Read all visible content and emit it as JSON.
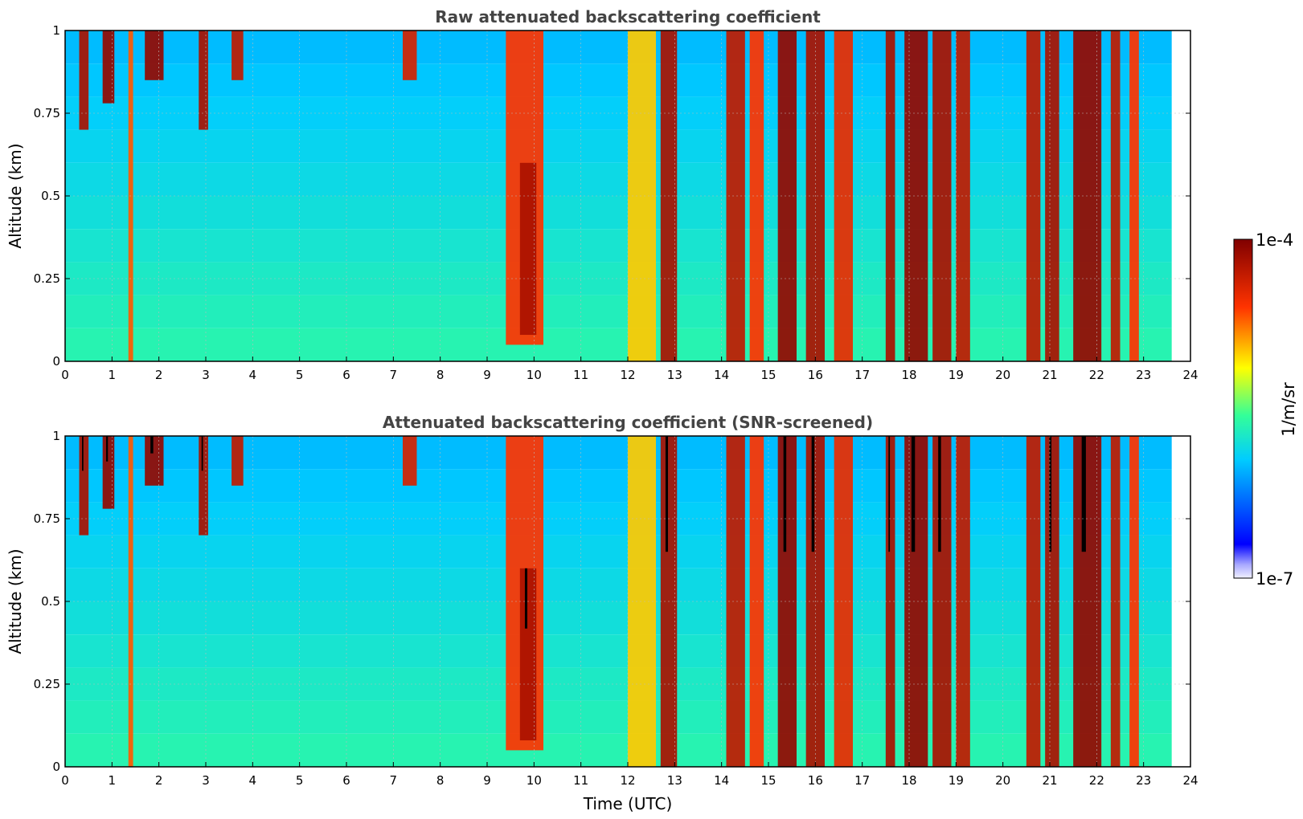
{
  "chart_data": [
    {
      "type": "heatmap",
      "title": "Raw attenuated backscattering coefficient",
      "xlabel": "",
      "ylabel": "Altitude (km)",
      "xlim": [
        0,
        24
      ],
      "ylim": [
        0,
        1
      ],
      "x_ticks": [
        "0",
        "1",
        "2",
        "3",
        "4",
        "5",
        "6",
        "7",
        "8",
        "9",
        "10",
        "11",
        "12",
        "13",
        "14",
        "15",
        "16",
        "17",
        "18",
        "19",
        "20",
        "21",
        "22",
        "23",
        "24"
      ],
      "y_ticks": [
        "0",
        "0.25",
        "0.5",
        "0.75",
        "1"
      ],
      "y_tick_values": [
        0,
        0.25,
        0.5,
        0.75,
        1
      ],
      "grid": true,
      "screened": false,
      "data_end_utc": 23.6,
      "background_log10": -5.9,
      "layers": [
        {
          "t_start": 0.3,
          "t_end": 0.5,
          "log10": -4.2,
          "alt_min": 0.7,
          "alt_max": 1.0
        },
        {
          "t_start": 0.8,
          "t_end": 1.05,
          "log10": -4.1,
          "alt_min": 0.78,
          "alt_max": 1.0
        },
        {
          "t_start": 1.35,
          "t_end": 1.45,
          "log10": -4.7,
          "alt_min": 0.0,
          "alt_max": 1.0
        },
        {
          "t_start": 1.7,
          "t_end": 2.1,
          "log10": -4.1,
          "alt_min": 0.85,
          "alt_max": 1.0
        },
        {
          "t_start": 2.85,
          "t_end": 3.05,
          "log10": -4.2,
          "alt_min": 0.7,
          "alt_max": 1.0
        },
        {
          "t_start": 3.55,
          "t_end": 3.8,
          "log10": -4.3,
          "alt_min": 0.85,
          "alt_max": 1.0
        },
        {
          "t_start": 7.2,
          "t_end": 7.5,
          "log10": -4.4,
          "alt_min": 0.85,
          "alt_max": 1.0
        },
        {
          "t_start": 9.4,
          "t_end": 10.2,
          "log10": -4.6,
          "alt_min": 0.05,
          "alt_max": 1.0
        },
        {
          "t_start": 9.7,
          "t_end": 10.05,
          "log10": -4.2,
          "alt_min": 0.08,
          "alt_max": 0.6
        },
        {
          "t_start": 12.0,
          "t_end": 12.6,
          "log10": -5.0,
          "alt_min": 0.0,
          "alt_max": 1.0
        },
        {
          "t_start": 12.7,
          "t_end": 13.05,
          "log10": -4.2,
          "alt_min": 0.0,
          "alt_max": 1.0
        },
        {
          "t_start": 14.1,
          "t_end": 14.5,
          "log10": -4.3,
          "alt_min": 0.0,
          "alt_max": 1.0
        },
        {
          "t_start": 14.6,
          "t_end": 14.9,
          "log10": -4.6,
          "alt_min": 0.0,
          "alt_max": 1.0
        },
        {
          "t_start": 15.2,
          "t_end": 15.6,
          "log10": -4.1,
          "alt_min": 0.0,
          "alt_max": 1.0
        },
        {
          "t_start": 15.8,
          "t_end": 16.2,
          "log10": -4.2,
          "alt_min": 0.0,
          "alt_max": 1.0
        },
        {
          "t_start": 16.4,
          "t_end": 16.8,
          "log10": -4.5,
          "alt_min": 0.0,
          "alt_max": 1.0
        },
        {
          "t_start": 17.5,
          "t_end": 17.7,
          "log10": -4.2,
          "alt_min": 0.0,
          "alt_max": 1.0
        },
        {
          "t_start": 17.9,
          "t_end": 18.4,
          "log10": -4.1,
          "alt_min": 0.0,
          "alt_max": 1.0
        },
        {
          "t_start": 18.5,
          "t_end": 18.9,
          "log10": -4.2,
          "alt_min": 0.0,
          "alt_max": 1.0
        },
        {
          "t_start": 19.0,
          "t_end": 19.3,
          "log10": -4.3,
          "alt_min": 0.0,
          "alt_max": 1.0
        },
        {
          "t_start": 20.5,
          "t_end": 20.8,
          "log10": -4.3,
          "alt_min": 0.0,
          "alt_max": 1.0
        },
        {
          "t_start": 20.9,
          "t_end": 21.2,
          "log10": -4.2,
          "alt_min": 0.0,
          "alt_max": 1.0
        },
        {
          "t_start": 21.5,
          "t_end": 22.1,
          "log10": -4.1,
          "alt_min": 0.0,
          "alt_max": 1.0
        },
        {
          "t_start": 22.3,
          "t_end": 22.5,
          "log10": -4.3,
          "alt_min": 0.0,
          "alt_max": 1.0
        },
        {
          "t_start": 22.7,
          "t_end": 22.9,
          "log10": -4.6,
          "alt_min": 0.0,
          "alt_max": 1.0
        }
      ]
    },
    {
      "type": "heatmap",
      "title": "Attenuated backscattering coefficient (SNR-screened)",
      "xlabel": "Time (UTC)",
      "ylabel": "Altitude (km)",
      "xlim": [
        0,
        24
      ],
      "ylim": [
        0,
        1
      ],
      "x_ticks": [
        "0",
        "1",
        "2",
        "3",
        "4",
        "5",
        "6",
        "7",
        "8",
        "9",
        "10",
        "11",
        "12",
        "13",
        "14",
        "15",
        "16",
        "17",
        "18",
        "19",
        "20",
        "21",
        "22",
        "23",
        "24"
      ],
      "y_ticks": [
        "0",
        "0.25",
        "0.5",
        "0.75",
        "1"
      ],
      "y_tick_values": [
        0,
        0.25,
        0.5,
        0.75,
        1
      ],
      "grid": true,
      "screened": true,
      "data_end_utc": 23.6,
      "background_log10": -5.9,
      "layers": [
        {
          "t_start": 0.3,
          "t_end": 0.5,
          "log10": -4.2,
          "alt_min": 0.7,
          "alt_max": 1.0
        },
        {
          "t_start": 0.8,
          "t_end": 1.05,
          "log10": -4.1,
          "alt_min": 0.78,
          "alt_max": 1.0
        },
        {
          "t_start": 1.35,
          "t_end": 1.45,
          "log10": -4.7,
          "alt_min": 0.0,
          "alt_max": 1.0
        },
        {
          "t_start": 1.7,
          "t_end": 2.1,
          "log10": -4.1,
          "alt_min": 0.85,
          "alt_max": 1.0
        },
        {
          "t_start": 2.85,
          "t_end": 3.05,
          "log10": -4.2,
          "alt_min": 0.7,
          "alt_max": 1.0
        },
        {
          "t_start": 3.55,
          "t_end": 3.8,
          "log10": -4.3,
          "alt_min": 0.85,
          "alt_max": 1.0
        },
        {
          "t_start": 7.2,
          "t_end": 7.5,
          "log10": -4.4,
          "alt_min": 0.85,
          "alt_max": 1.0
        },
        {
          "t_start": 9.4,
          "t_end": 10.2,
          "log10": -4.6,
          "alt_min": 0.05,
          "alt_max": 1.0
        },
        {
          "t_start": 9.7,
          "t_end": 10.05,
          "log10": -4.2,
          "alt_min": 0.08,
          "alt_max": 0.6
        },
        {
          "t_start": 12.0,
          "t_end": 12.6,
          "log10": -5.0,
          "alt_min": 0.0,
          "alt_max": 1.0
        },
        {
          "t_start": 12.7,
          "t_end": 13.05,
          "log10": -4.2,
          "alt_min": 0.0,
          "alt_max": 1.0
        },
        {
          "t_start": 14.1,
          "t_end": 14.5,
          "log10": -4.3,
          "alt_min": 0.0,
          "alt_max": 1.0
        },
        {
          "t_start": 14.6,
          "t_end": 14.9,
          "log10": -4.6,
          "alt_min": 0.0,
          "alt_max": 1.0
        },
        {
          "t_start": 15.2,
          "t_end": 15.6,
          "log10": -4.1,
          "alt_min": 0.0,
          "alt_max": 1.0
        },
        {
          "t_start": 15.8,
          "t_end": 16.2,
          "log10": -4.2,
          "alt_min": 0.0,
          "alt_max": 1.0
        },
        {
          "t_start": 16.4,
          "t_end": 16.8,
          "log10": -4.5,
          "alt_min": 0.0,
          "alt_max": 1.0
        },
        {
          "t_start": 17.5,
          "t_end": 17.7,
          "log10": -4.2,
          "alt_min": 0.0,
          "alt_max": 1.0
        },
        {
          "t_start": 17.9,
          "t_end": 18.4,
          "log10": -4.1,
          "alt_min": 0.0,
          "alt_max": 1.0
        },
        {
          "t_start": 18.5,
          "t_end": 18.9,
          "log10": -4.2,
          "alt_min": 0.0,
          "alt_max": 1.0
        },
        {
          "t_start": 19.0,
          "t_end": 19.3,
          "log10": -4.3,
          "alt_min": 0.0,
          "alt_max": 1.0
        },
        {
          "t_start": 20.5,
          "t_end": 20.8,
          "log10": -4.3,
          "alt_min": 0.0,
          "alt_max": 1.0
        },
        {
          "t_start": 20.9,
          "t_end": 21.2,
          "log10": -4.2,
          "alt_min": 0.0,
          "alt_max": 1.0
        },
        {
          "t_start": 21.5,
          "t_end": 22.1,
          "log10": -4.1,
          "alt_min": 0.0,
          "alt_max": 1.0
        },
        {
          "t_start": 22.3,
          "t_end": 22.5,
          "log10": -4.3,
          "alt_min": 0.0,
          "alt_max": 1.0
        },
        {
          "t_start": 22.7,
          "t_end": 22.9,
          "log10": -4.6,
          "alt_min": 0.0,
          "alt_max": 1.0
        }
      ]
    }
  ],
  "colorbar": {
    "label": "1/m/sr",
    "max_label": "1e-4",
    "min_label": "1e-7",
    "log10_min": -7,
    "log10_max": -4,
    "colormap": "jet"
  },
  "colors": {
    "grid": "#bbbbbb",
    "axis": "#000000",
    "title": "#444444",
    "screened_saturated": "#000000",
    "no_data": "#ffffff"
  }
}
